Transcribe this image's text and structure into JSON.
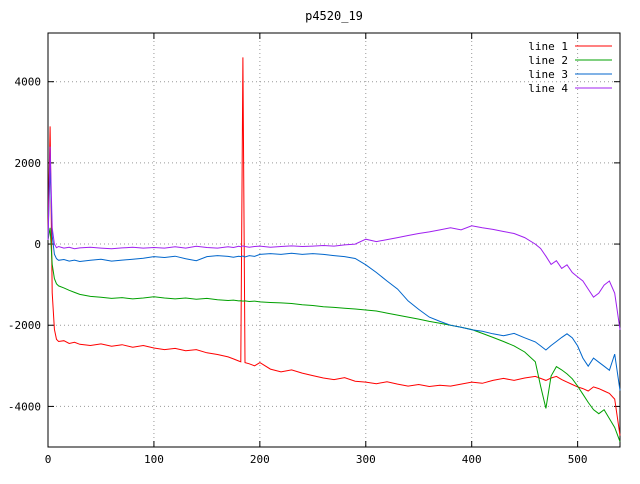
{
  "window": {
    "title": "p4520_19"
  },
  "chart_data": {
    "type": "line",
    "title": "p4520_19",
    "xlabel": "",
    "ylabel": "",
    "xlim": [
      0,
      540
    ],
    "ylim": [
      -5000,
      5200
    ],
    "xticks": [
      0,
      100,
      200,
      300,
      400,
      500
    ],
    "yticks": [
      -4000,
      -2000,
      0,
      2000,
      4000
    ],
    "grid": true,
    "grid_style": "dotted",
    "legend_position": "top-right-inside",
    "background_color": "#ffffff",
    "border_color": "#000000",
    "x": [
      0,
      2,
      4,
      6,
      8,
      10,
      15,
      20,
      25,
      30,
      40,
      50,
      60,
      70,
      80,
      90,
      100,
      110,
      120,
      130,
      140,
      150,
      160,
      170,
      175,
      180,
      182,
      184,
      186,
      190,
      195,
      200,
      210,
      220,
      230,
      240,
      250,
      260,
      270,
      280,
      290,
      300,
      310,
      320,
      330,
      340,
      350,
      360,
      370,
      380,
      390,
      400,
      410,
      420,
      430,
      440,
      450,
      460,
      465,
      470,
      475,
      480,
      485,
      490,
      495,
      500,
      505,
      510,
      515,
      520,
      525,
      530,
      535,
      540
    ],
    "series": [
      {
        "name": "line 1",
        "color": "#ff0000",
        "values": [
          200,
          2900,
          -1200,
          -2100,
          -2350,
          -2400,
          -2380,
          -2450,
          -2420,
          -2470,
          -2500,
          -2460,
          -2520,
          -2480,
          -2540,
          -2500,
          -2560,
          -2600,
          -2570,
          -2630,
          -2600,
          -2680,
          -2720,
          -2780,
          -2830,
          -2880,
          -2900,
          4600,
          -2920,
          -2950,
          -3000,
          -2920,
          -3080,
          -3150,
          -3100,
          -3180,
          -3240,
          -3300,
          -3340,
          -3290,
          -3380,
          -3400,
          -3440,
          -3390,
          -3450,
          -3500,
          -3460,
          -3510,
          -3480,
          -3500,
          -3450,
          -3400,
          -3430,
          -3360,
          -3310,
          -3360,
          -3300,
          -3260,
          -3310,
          -3360,
          -3300,
          -3260,
          -3340,
          -3400,
          -3460,
          -3520,
          -3560,
          -3620,
          -3520,
          -3560,
          -3620,
          -3680,
          -3820,
          -4720
        ]
      },
      {
        "name": "line 2",
        "color": "#00a000",
        "values": [
          100,
          400,
          -500,
          -850,
          -980,
          -1030,
          -1080,
          -1140,
          -1190,
          -1240,
          -1290,
          -1310,
          -1340,
          -1320,
          -1350,
          -1330,
          -1300,
          -1330,
          -1350,
          -1330,
          -1360,
          -1340,
          -1370,
          -1390,
          -1380,
          -1400,
          -1395,
          -1405,
          -1400,
          -1415,
          -1405,
          -1425,
          -1440,
          -1450,
          -1465,
          -1495,
          -1515,
          -1545,
          -1560,
          -1580,
          -1600,
          -1625,
          -1650,
          -1700,
          -1750,
          -1800,
          -1850,
          -1905,
          -1950,
          -2000,
          -2050,
          -2105,
          -2200,
          -2300,
          -2400,
          -2510,
          -2660,
          -2900,
          -3500,
          -4050,
          -3250,
          -3020,
          -3100,
          -3200,
          -3320,
          -3500,
          -3700,
          -3900,
          -4080,
          -4180,
          -4080,
          -4300,
          -4520,
          -4870
        ]
      },
      {
        "name": "line 3",
        "color": "#0066cc",
        "values": [
          100,
          1950,
          200,
          -250,
          -360,
          -400,
          -380,
          -420,
          -395,
          -430,
          -400,
          -375,
          -420,
          -395,
          -375,
          -350,
          -310,
          -330,
          -300,
          -360,
          -410,
          -310,
          -285,
          -305,
          -325,
          -300,
          -310,
          -295,
          -320,
          -285,
          -305,
          -255,
          -235,
          -255,
          -225,
          -255,
          -235,
          -255,
          -285,
          -310,
          -355,
          -510,
          -700,
          -910,
          -1110,
          -1400,
          -1610,
          -1800,
          -1905,
          -2000,
          -2050,
          -2110,
          -2150,
          -2210,
          -2260,
          -2200,
          -2310,
          -2410,
          -2510,
          -2610,
          -2500,
          -2400,
          -2300,
          -2210,
          -2310,
          -2510,
          -2810,
          -3010,
          -2810,
          -2910,
          -3010,
          -3110,
          -2710,
          -3610
        ]
      },
      {
        "name": "line 4",
        "color": "#a020f0",
        "values": [
          100,
          2400,
          400,
          0,
          -90,
          -60,
          -100,
          -80,
          -115,
          -95,
          -80,
          -100,
          -115,
          -95,
          -80,
          -100,
          -85,
          -100,
          -65,
          -100,
          -55,
          -85,
          -100,
          -65,
          -85,
          -55,
          -65,
          -45,
          -60,
          -80,
          -60,
          -50,
          -80,
          -60,
          -45,
          -60,
          -50,
          -35,
          -50,
          -20,
          0,
          120,
          60,
          110,
          160,
          210,
          260,
          300,
          350,
          400,
          350,
          450,
          400,
          360,
          310,
          260,
          160,
          0,
          -110,
          -300,
          -500,
          -410,
          -600,
          -510,
          -700,
          -810,
          -910,
          -1110,
          -1310,
          -1210,
          -1010,
          -910,
          -1210,
          -2110
        ]
      }
    ]
  }
}
